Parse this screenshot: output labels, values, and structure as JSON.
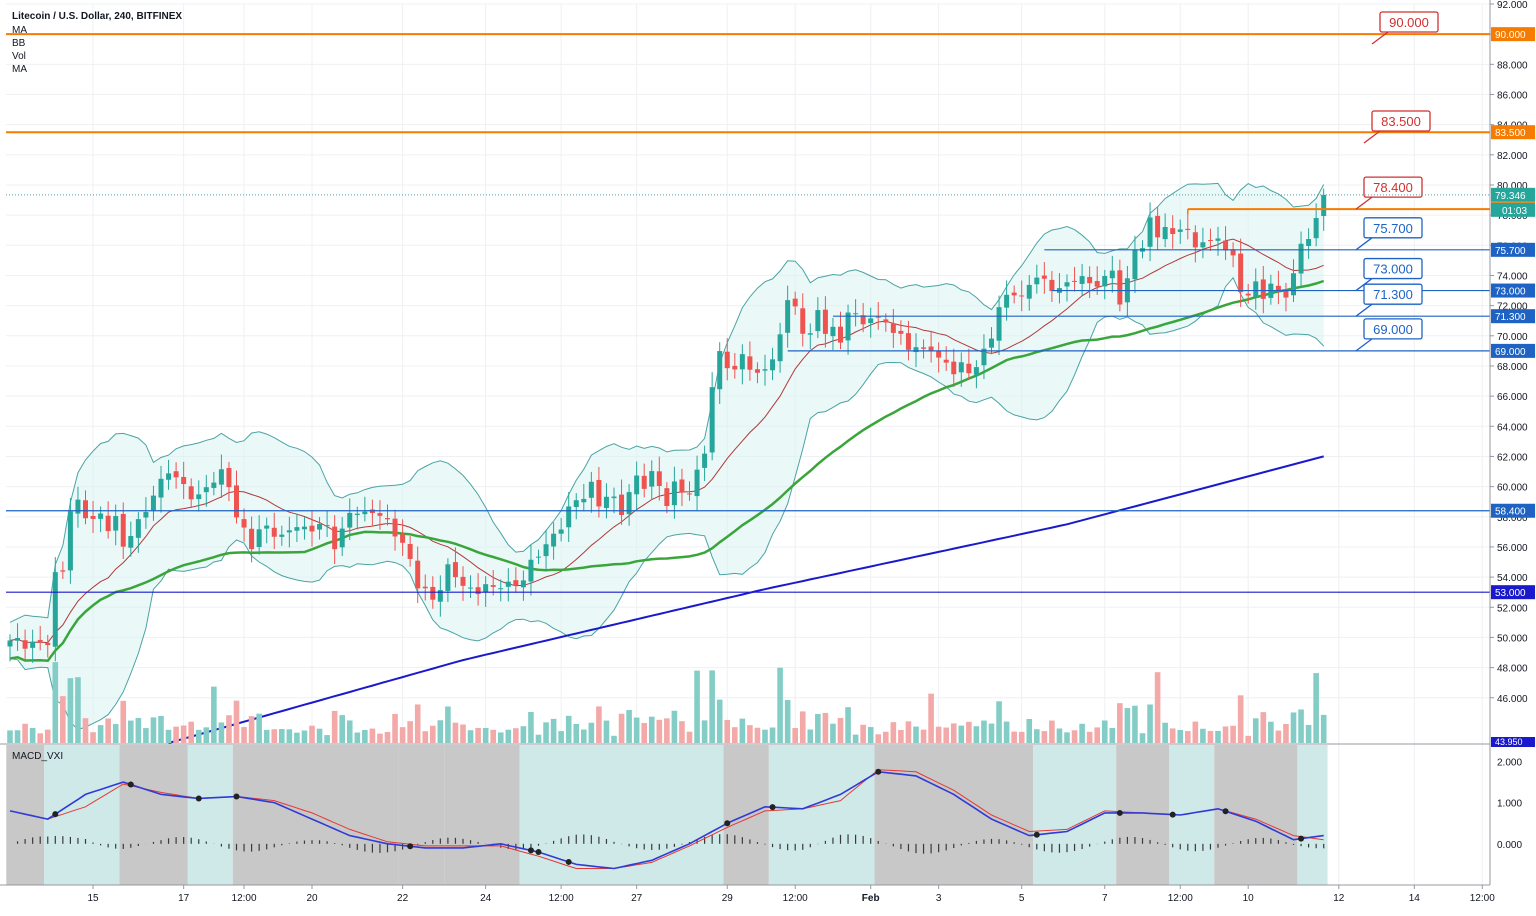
{
  "header": {
    "title": "Litecoin / U.S. Dollar, 240, BITFINEX",
    "indicators": [
      "MA",
      "BB",
      "Vol",
      "MA"
    ]
  },
  "macd_label": "MACD_VXI",
  "colors": {
    "up": "#26a69a",
    "down": "#ef5350",
    "up_vol": "#84cdc6",
    "down_vol": "#f2a9a8",
    "orange": "#f57c00",
    "blue_line": "#1e63c4",
    "navy": "#1a1acc",
    "green_ma": "#3aa53a",
    "red_ma": "#b03a3a",
    "bb": "#4aa3a3",
    "callout_red": "#d32f2f",
    "callout_blue": "#1e63c4"
  },
  "chart_data": [
    {
      "type": "candlestick",
      "title": "Litecoin / U.S. Dollar, 240, BITFINEX",
      "y_axis": {
        "min": 43,
        "max": 92,
        "ticks": [
          "92.000",
          "90.000",
          "88.000",
          "86.000",
          "84.000",
          "82.000",
          "80.000",
          "78.000",
          "76.000",
          "74.000",
          "72.000",
          "70.000",
          "68.000",
          "66.000",
          "64.000",
          "62.000",
          "60.000",
          "58.000",
          "56.000",
          "54.000",
          "52.000",
          "50.000",
          "48.000",
          "46.000"
        ]
      },
      "x_axis": {
        "ticks": [
          "15",
          "17",
          "12:00",
          "20",
          "22",
          "24",
          "12:00",
          "27",
          "29",
          "12:00",
          "Feb",
          "3",
          "5",
          "7",
          "12:00",
          "10",
          "12",
          "14",
          "12:00"
        ]
      },
      "last_price": {
        "value": "79.346",
        "countdown": "01:03"
      },
      "horizontal_levels": [
        {
          "value": 90.0,
          "label": "90.000",
          "color": "orange",
          "callout": "90.000"
        },
        {
          "value": 83.5,
          "label": "83.500",
          "color": "orange",
          "callout": "83.500"
        },
        {
          "value": 78.4,
          "label": "78.400",
          "color": "orange",
          "callout": "78.400"
        },
        {
          "value": 75.7,
          "label": "75.700",
          "color": "blue",
          "callout": "75.700"
        },
        {
          "value": 73.0,
          "label": "73.000",
          "color": "blue",
          "callout": "73.000"
        },
        {
          "value": 71.3,
          "label": "71.300",
          "color": "blue",
          "callout": "71.300"
        },
        {
          "value": 69.0,
          "label": "69.000",
          "color": "blue",
          "callout": "69.000"
        },
        {
          "value": 58.4,
          "label": "58.400",
          "color": "blue",
          "callout": ""
        },
        {
          "value": 53.0,
          "label": "53.000",
          "color": "navy",
          "callout": ""
        }
      ],
      "cutoff_label": "43.950",
      "price_path": [
        [
          0,
          49.8
        ],
        [
          3,
          49.5
        ],
        [
          5,
          49.8
        ],
        [
          6,
          54
        ],
        [
          7,
          54.5
        ],
        [
          8,
          58.5
        ],
        [
          9,
          58.8
        ],
        [
          10,
          58.2
        ],
        [
          11,
          57.8
        ],
        [
          12,
          58.0
        ],
        [
          13,
          57.4
        ],
        [
          14,
          57.8
        ],
        [
          15,
          56.0
        ],
        [
          16,
          57.0
        ],
        [
          17,
          57.5
        ],
        [
          18,
          58.5
        ],
        [
          19,
          59.5
        ],
        [
          20,
          60.2
        ],
        [
          21,
          61.2
        ],
        [
          22,
          60.5
        ],
        [
          23,
          60.0
        ],
        [
          24,
          59.5
        ],
        [
          25,
          59.2
        ],
        [
          26,
          60.0
        ],
        [
          27,
          60.5
        ],
        [
          28,
          60.8
        ],
        [
          29,
          60.2
        ],
        [
          30,
          58.0
        ],
        [
          31,
          57.0
        ],
        [
          32,
          56.2
        ],
        [
          33,
          57.0
        ],
        [
          34,
          57.3
        ],
        [
          35,
          57.0
        ],
        [
          36,
          56.5
        ],
        [
          37,
          57.2
        ],
        [
          38,
          57.5
        ],
        [
          39,
          57.0
        ],
        [
          40,
          57.3
        ],
        [
          41,
          57.5
        ],
        [
          42,
          57.2
        ],
        [
          43,
          56.2
        ],
        [
          44,
          57.0
        ],
        [
          45,
          58.2
        ],
        [
          46,
          58.5
        ],
        [
          47,
          58.0
        ],
        [
          48,
          58.4
        ],
        [
          49,
          58.2
        ],
        [
          50,
          57.5
        ],
        [
          51,
          57.0
        ],
        [
          52,
          56.2
        ],
        [
          53,
          55.0
        ],
        [
          54,
          53.6
        ],
        [
          55,
          53.0
        ],
        [
          56,
          52.5
        ],
        [
          57,
          53.4
        ],
        [
          58,
          54.5
        ],
        [
          59,
          54.2
        ],
        [
          60,
          53.5
        ],
        [
          61,
          53.0
        ],
        [
          62,
          53.2
        ],
        [
          63,
          53.4
        ],
        [
          64,
          53.2
        ],
        [
          65,
          53.6
        ],
        [
          66,
          53.4
        ],
        [
          67,
          53.5
        ],
        [
          68,
          54.0
        ],
        [
          69,
          54.8
        ],
        [
          70,
          55.6
        ],
        [
          71,
          56.2
        ],
        [
          72,
          56.6
        ],
        [
          73,
          57.5
        ],
        [
          74,
          58.5
        ],
        [
          75,
          59.0
        ],
        [
          76,
          59.5
        ],
        [
          77,
          60.0
        ],
        [
          78,
          58.8
        ],
        [
          79,
          59.5
        ],
        [
          80,
          59.0
        ],
        [
          81,
          58.4
        ],
        [
          82,
          59.6
        ],
        [
          83,
          60.5
        ],
        [
          84,
          60.2
        ],
        [
          85,
          60.8
        ],
        [
          86,
          60.0
        ],
        [
          87,
          59.0
        ],
        [
          88,
          60.0
        ],
        [
          89,
          59.8
        ],
        [
          90,
          59.6
        ],
        [
          91,
          60.8
        ],
        [
          92,
          62.5
        ],
        [
          93,
          66.5
        ],
        [
          94,
          68.8
        ],
        [
          95,
          68.2
        ],
        [
          96,
          67.5
        ],
        [
          97,
          68.8
        ],
        [
          98,
          68.0
        ],
        [
          99,
          67.2
        ],
        [
          100,
          68.0
        ],
        [
          101,
          68.5
        ],
        [
          102,
          69.8
        ],
        [
          103,
          72.7
        ],
        [
          104,
          71.8
        ],
        [
          105,
          70.0
        ],
        [
          106,
          70.5
        ],
        [
          107,
          71.4
        ],
        [
          108,
          70.2
        ],
        [
          109,
          70.8
        ],
        [
          110,
          69.2
        ],
        [
          111,
          71.8
        ],
        [
          112,
          71.5
        ],
        [
          113,
          70.5
        ],
        [
          114,
          71.5
        ],
        [
          115,
          71.0
        ],
        [
          116,
          70.8
        ],
        [
          117,
          70.5
        ],
        [
          118,
          69.8
        ],
        [
          119,
          69.2
        ],
        [
          120,
          69.4
        ],
        [
          121,
          68.8
        ],
        [
          122,
          69.3
        ],
        [
          123,
          68.5
        ],
        [
          124,
          68.0
        ],
        [
          125,
          67.8
        ],
        [
          126,
          68.0
        ],
        [
          127,
          67.5
        ],
        [
          128,
          68.2
        ],
        [
          129,
          68.8
        ],
        [
          130,
          70.0
        ],
        [
          131,
          72.0
        ],
        [
          132,
          72.4
        ],
        [
          133,
          73.0
        ],
        [
          134,
          72.5
        ],
        [
          135,
          73.2
        ],
        [
          136,
          74.2
        ],
        [
          137,
          73.5
        ],
        [
          138,
          73.0
        ],
        [
          139,
          73.4
        ],
        [
          140,
          73.2
        ],
        [
          141,
          73.8
        ],
        [
          142,
          74.0
        ],
        [
          143,
          73.2
        ],
        [
          144,
          73.6
        ],
        [
          145,
          73.8
        ],
        [
          146,
          74.2
        ],
        [
          147,
          72.4
        ],
        [
          148,
          73.5
        ],
        [
          149,
          75.8
        ],
        [
          150,
          76.0
        ],
        [
          151,
          77.5
        ],
        [
          152,
          76.8
        ],
        [
          153,
          77.2
        ],
        [
          154,
          76.5
        ],
        [
          155,
          77.4
        ],
        [
          156,
          76.8
        ],
        [
          157,
          75.8
        ],
        [
          158,
          76.5
        ],
        [
          159,
          76.0
        ],
        [
          160,
          76.6
        ],
        [
          161,
          75.8
        ],
        [
          162,
          75.0
        ],
        [
          163,
          73.2
        ],
        [
          164,
          72.6
        ],
        [
          165,
          73.4
        ],
        [
          166,
          72.8
        ],
        [
          167,
          73.2
        ],
        [
          168,
          73.0
        ],
        [
          169,
          72.8
        ],
        [
          170,
          73.8
        ],
        [
          171,
          76.3
        ],
        [
          172,
          76.5
        ],
        [
          173,
          77.5
        ],
        [
          174,
          79.346
        ]
      ],
      "macd_points": [
        [
          0,
          0.8
        ],
        [
          5,
          0.6
        ],
        [
          10,
          1.2
        ],
        [
          15,
          1.5
        ],
        [
          20,
          1.2
        ],
        [
          25,
          1.1
        ],
        [
          30,
          1.15
        ],
        [
          35,
          1.0
        ],
        [
          40,
          0.6
        ],
        [
          45,
          0.2
        ],
        [
          50,
          0.0
        ],
        [
          55,
          -0.1
        ],
        [
          60,
          -0.1
        ],
        [
          65,
          0.0
        ],
        [
          70,
          -0.2
        ],
        [
          75,
          -0.5
        ],
        [
          80,
          -0.6
        ],
        [
          85,
          -0.4
        ],
        [
          90,
          0.0
        ],
        [
          95,
          0.5
        ],
        [
          100,
          0.9
        ],
        [
          105,
          0.85
        ],
        [
          110,
          1.2
        ],
        [
          115,
          1.75
        ],
        [
          120,
          1.65
        ],
        [
          125,
          1.2
        ],
        [
          130,
          0.6
        ],
        [
          135,
          0.2
        ],
        [
          140,
          0.3
        ],
        [
          145,
          0.75
        ],
        [
          150,
          0.75
        ],
        [
          155,
          0.7
        ],
        [
          160,
          0.85
        ],
        [
          165,
          0.55
        ],
        [
          170,
          0.1
        ],
        [
          174,
          0.2
        ]
      ],
      "signal_points": [
        [
          0,
          0.8
        ],
        [
          5,
          0.6
        ],
        [
          10,
          0.9
        ],
        [
          15,
          1.45
        ],
        [
          20,
          1.25
        ],
        [
          25,
          1.1
        ],
        [
          30,
          1.15
        ],
        [
          35,
          1.05
        ],
        [
          40,
          0.75
        ],
        [
          45,
          0.35
        ],
        [
          50,
          0.05
        ],
        [
          55,
          -0.05
        ],
        [
          60,
          -0.05
        ],
        [
          65,
          -0.05
        ],
        [
          70,
          -0.3
        ],
        [
          75,
          -0.6
        ],
        [
          80,
          -0.6
        ],
        [
          85,
          -0.45
        ],
        [
          90,
          -0.05
        ],
        [
          95,
          0.4
        ],
        [
          100,
          0.8
        ],
        [
          105,
          0.85
        ],
        [
          110,
          1.05
        ],
        [
          115,
          1.8
        ],
        [
          120,
          1.75
        ],
        [
          125,
          1.3
        ],
        [
          130,
          0.7
        ],
        [
          135,
          0.3
        ],
        [
          140,
          0.35
        ],
        [
          145,
          0.8
        ],
        [
          150,
          0.75
        ],
        [
          155,
          0.7
        ],
        [
          160,
          0.85
        ],
        [
          165,
          0.6
        ],
        [
          170,
          0.2
        ],
        [
          174,
          0.1
        ]
      ],
      "macd_ticks": [
        "2.000",
        "1.000",
        "0.000"
      ]
    }
  ]
}
